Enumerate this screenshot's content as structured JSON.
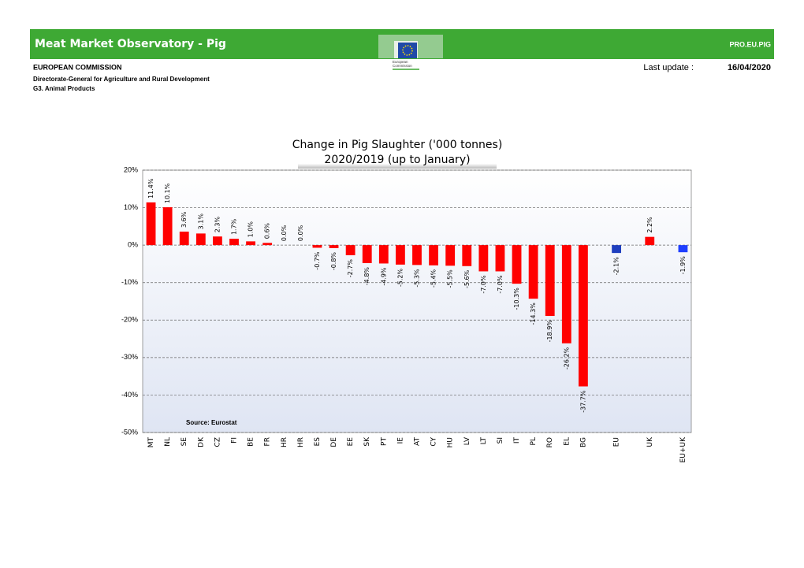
{
  "header": {
    "title": "Meat Market Observatory - Pig",
    "code": "PRO.EU.PIG",
    "logo_text": [
      "European",
      "Commission"
    ],
    "organisation": "EUROPEAN COMMISSION",
    "directorate": "Directorate-General for Agriculture and Rural Development",
    "unit": "G3. Animal Products",
    "update_label": "Last update :",
    "update_date": "16/04/2020"
  },
  "chart_data": {
    "type": "bar",
    "title": "Change in Pig Slaughter ('000 tonnes)",
    "subtitle": "2020/2019 (up to January)",
    "source": "Source: Eurostat",
    "categories": [
      "MT",
      "NL",
      "SE",
      "DK",
      "CZ",
      "FI",
      "BE",
      "FR",
      "HR",
      "HR",
      "ES",
      "DE",
      "EE",
      "SK",
      "PT",
      "IE",
      "AT",
      "CY",
      "HU",
      "LV",
      "LT",
      "SI",
      "IT",
      "PL",
      "RO",
      "EL",
      "BG",
      null,
      "EU",
      null,
      "UK",
      null,
      "EU+UK"
    ],
    "values": [
      11.4,
      10.1,
      3.6,
      3.1,
      2.3,
      1.7,
      1.0,
      0.6,
      0.0,
      0.0,
      -0.7,
      -0.8,
      -2.7,
      -4.8,
      -4.9,
      -5.2,
      -5.3,
      -5.4,
      -5.5,
      -5.6,
      -7.0,
      -7.0,
      -10.3,
      -14.3,
      -18.9,
      -26.2,
      -37.7,
      null,
      -2.1,
      null,
      2.2,
      null,
      -1.9
    ],
    "value_labels": [
      "11.4%",
      "10.1%",
      "3.6%",
      "3.1%",
      "2.3%",
      "1.7%",
      "1.0%",
      "0.6%",
      "0.0%",
      "0.0%",
      "-0.7%",
      "-0.8%",
      "-2.7%",
      "-4.8%",
      "-4.9%",
      "-5.2%",
      "-5.3%",
      "-5.4%",
      "-5.5%",
      "-5.6%",
      "-7.0%",
      "-7.0%",
      "-10.3%",
      "-14.3%",
      "-18.9%",
      "-26.2%",
      "-37.7%",
      null,
      "-2.1%",
      null,
      "2.2%",
      null,
      "-1.9%"
    ],
    "colors": [
      "#ff0000",
      "#ff0000",
      "#ff0000",
      "#ff0000",
      "#ff0000",
      "#ff0000",
      "#ff0000",
      "#ff0000",
      "#ff0000",
      "#ff0000",
      "#ff0000",
      "#ff0000",
      "#ff0000",
      "#ff0000",
      "#ff0000",
      "#ff0000",
      "#ff0000",
      "#ff0000",
      "#ff0000",
      "#ff0000",
      "#ff0000",
      "#ff0000",
      "#ff0000",
      "#ff0000",
      "#ff0000",
      "#ff0000",
      "#ff0000",
      null,
      "#1f3fbf",
      null,
      "#ff0000",
      null,
      "#1f3fff"
    ],
    "ylim": [
      -50,
      20
    ],
    "yticks": [
      {
        "value": -50,
        "label": "-50%"
      },
      {
        "value": -40,
        "label": "-40%"
      },
      {
        "value": -30,
        "label": "-30%"
      },
      {
        "value": -20,
        "label": "-20%"
      },
      {
        "value": -10,
        "label": "-10%"
      },
      {
        "value": 0,
        "label": "0%"
      },
      {
        "value": 10,
        "label": "10%"
      },
      {
        "value": 20,
        "label": "20%"
      }
    ],
    "grid": true
  }
}
